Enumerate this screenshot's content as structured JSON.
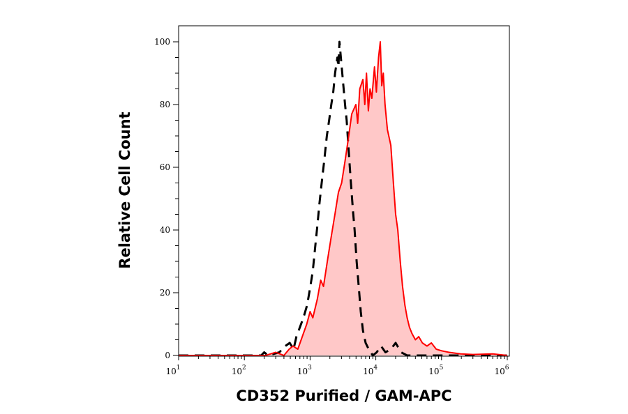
{
  "chart_data": {
    "type": "line",
    "title": "",
    "xlabel": "CD352 Purified / GAM-APC",
    "ylabel": "Relative Cell Count",
    "xscale": "log",
    "xlim": [
      10,
      1000000
    ],
    "ylim": [
      0,
      105
    ],
    "grid": false,
    "x_ticks": [
      {
        "base": "10",
        "exp": "1",
        "value": 10
      },
      {
        "base": "10",
        "exp": "2",
        "value": 100
      },
      {
        "base": "10",
        "exp": "3",
        "value": 1000
      },
      {
        "base": "10",
        "exp": "4",
        "value": 10000
      },
      {
        "base": "10",
        "exp": "5",
        "value": 100000
      },
      {
        "base": "10",
        "exp": "6",
        "value": 1000000
      }
    ],
    "y_ticks": [
      "0",
      "20",
      "40",
      "60",
      "80",
      "100"
    ],
    "series": [
      {
        "style": "dashed",
        "color": "#000000",
        "fill": null,
        "points": [
          [
            10,
            0
          ],
          [
            180,
            0
          ],
          [
            200,
            1
          ],
          [
            230,
            0
          ],
          [
            340,
            1
          ],
          [
            420,
            3
          ],
          [
            490,
            4
          ],
          [
            560,
            2
          ],
          [
            620,
            6
          ],
          [
            700,
            9
          ],
          [
            790,
            12
          ],
          [
            900,
            16
          ],
          [
            1010,
            22
          ],
          [
            1100,
            27
          ],
          [
            1200,
            35
          ],
          [
            1300,
            42
          ],
          [
            1380,
            48
          ],
          [
            1500,
            55
          ],
          [
            1640,
            62
          ],
          [
            1800,
            70
          ],
          [
            1950,
            75
          ],
          [
            2100,
            80
          ],
          [
            2250,
            84
          ],
          [
            2400,
            90
          ],
          [
            2600,
            95
          ],
          [
            2700,
            92
          ],
          [
            2800,
            100
          ],
          [
            3000,
            93
          ],
          [
            3150,
            88
          ],
          [
            3400,
            80
          ],
          [
            3600,
            75
          ],
          [
            3900,
            64
          ],
          [
            4180,
            55
          ],
          [
            4500,
            46
          ],
          [
            4760,
            40
          ],
          [
            5100,
            30
          ],
          [
            5500,
            22
          ],
          [
            5900,
            14
          ],
          [
            6370,
            8
          ],
          [
            7000,
            4
          ],
          [
            7800,
            2
          ],
          [
            9000,
            0
          ],
          [
            10300,
            1
          ],
          [
            12000,
            3
          ],
          [
            14000,
            1
          ],
          [
            16900,
            2
          ],
          [
            20000,
            4
          ],
          [
            24300,
            1
          ],
          [
            30000,
            0
          ],
          [
            1000000,
            0
          ]
        ]
      },
      {
        "style": "solid",
        "color": "#ff0000",
        "fill": "#ffc8c8",
        "points": [
          [
            10,
            0
          ],
          [
            210,
            0
          ],
          [
            300,
            1
          ],
          [
            400,
            0
          ],
          [
            480,
            2
          ],
          [
            550,
            3
          ],
          [
            650,
            2
          ],
          [
            760,
            6
          ],
          [
            890,
            10
          ],
          [
            1000,
            14
          ],
          [
            1100,
            12
          ],
          [
            1290,
            18
          ],
          [
            1450,
            24
          ],
          [
            1600,
            22
          ],
          [
            1860,
            31
          ],
          [
            2100,
            38
          ],
          [
            2390,
            45
          ],
          [
            2700,
            52
          ],
          [
            3020,
            55
          ],
          [
            3400,
            62
          ],
          [
            3870,
            70
          ],
          [
            4300,
            77
          ],
          [
            4970,
            80
          ],
          [
            5300,
            74
          ],
          [
            5700,
            85
          ],
          [
            6370,
            88
          ],
          [
            6800,
            80
          ],
          [
            7200,
            90
          ],
          [
            7700,
            78
          ],
          [
            8170,
            85
          ],
          [
            8700,
            82
          ],
          [
            9540,
            92
          ],
          [
            10200,
            84
          ],
          [
            11000,
            95
          ],
          [
            11680,
            100
          ],
          [
            12300,
            86
          ],
          [
            13000,
            90
          ],
          [
            13800,
            80
          ],
          [
            15000,
            72
          ],
          [
            16900,
            67
          ],
          [
            18500,
            55
          ],
          [
            20000,
            45
          ],
          [
            21600,
            40
          ],
          [
            23500,
            30
          ],
          [
            25500,
            22
          ],
          [
            27700,
            16
          ],
          [
            30000,
            12
          ],
          [
            32500,
            9
          ],
          [
            35500,
            7
          ],
          [
            40000,
            5
          ],
          [
            45000,
            6
          ],
          [
            51000,
            4
          ],
          [
            60000,
            3
          ],
          [
            70000,
            4
          ],
          [
            83000,
            2
          ],
          [
            100000,
            1.5
          ],
          [
            130000,
            1
          ],
          [
            195000,
            0.5
          ],
          [
            300000,
            0.3
          ],
          [
            600000,
            0.5
          ],
          [
            1000000,
            0
          ]
        ]
      }
    ]
  }
}
